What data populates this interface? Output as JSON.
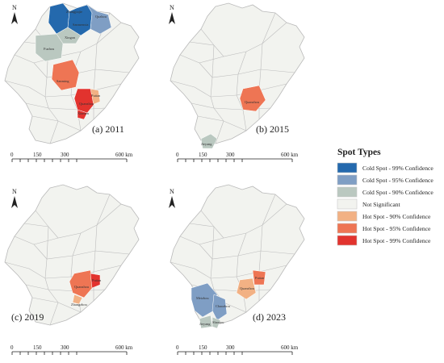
{
  "panels": [
    {
      "id": "a",
      "label": "(a) 2011",
      "places": [
        "Zhangjiajie",
        "Sanmenxia",
        "Quzhou",
        "Xingan",
        "Fuzhou",
        "Sanming",
        "Putian",
        "Quanzhou",
        "Xiamen"
      ]
    },
    {
      "id": "b",
      "label": "(b) 2015",
      "places": [
        "Quanzhou",
        "Jieyang"
      ]
    },
    {
      "id": "c",
      "label": "(c) 2019",
      "places": [
        "Putian",
        "Quanzhou",
        "Zhangzhou"
      ]
    },
    {
      "id": "d",
      "label": "(d) 2023",
      "places": [
        "Meizhou",
        "Chaozhou",
        "Jieyang",
        "Shantou",
        "Putian",
        "Quanzhou"
      ]
    }
  ],
  "scale_bar": {
    "labels": [
      "0",
      "150",
      "300",
      "600 km"
    ]
  },
  "north_arrow": {
    "label": "N"
  },
  "legend": {
    "title": "Spot Types",
    "items": [
      {
        "label": "Cold Spot - 99% Confidence",
        "color": "#2469ad"
      },
      {
        "label": "Cold Spot - 95% Confidence",
        "color": "#7f9ec4"
      },
      {
        "label": "Cold Spot - 90% Confidence",
        "color": "#bac8c0"
      },
      {
        "label": "Not Significant",
        "color": "#f2f3ef"
      },
      {
        "label": "Hot Spot - 90% Confidence",
        "color": "#f2b184"
      },
      {
        "label": "Hot Spot - 95% Confidence",
        "color": "#ee7554"
      },
      {
        "label": "Hot Spot - 99% Confidence",
        "color": "#e2332e"
      }
    ]
  },
  "colors": {
    "cold99": "#2469ad",
    "cold95": "#7f9ec4",
    "cold90": "#bac8c0",
    "ns": "#f2f3ef",
    "hot90": "#f2b184",
    "hot95": "#ee7554",
    "hot99": "#e2332e",
    "border": "#b9b9b9"
  }
}
